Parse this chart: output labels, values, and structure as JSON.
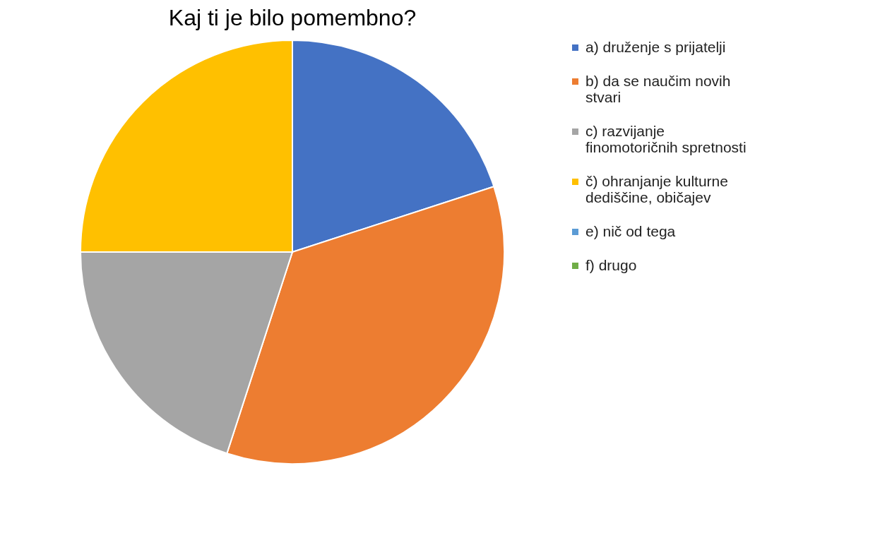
{
  "chart_data": {
    "type": "pie",
    "title": "Kaj ti je bilo pomembno?",
    "categories": [
      "a) druženje s prijatelji",
      "b) da se naučim novih stvari",
      "c) razvijanje finomotoričnih spretnosti",
      "č) ohranjanje kulturne dediščine, običajev",
      "e) nič od tega",
      "f) drugo"
    ],
    "values": [
      20,
      35,
      20,
      25,
      0,
      0
    ],
    "colors": [
      "#4472c4",
      "#ed7d31",
      "#a5a5a5",
      "#ffc000",
      "#5b9bd5",
      "#70ad47"
    ],
    "legend": "right"
  }
}
